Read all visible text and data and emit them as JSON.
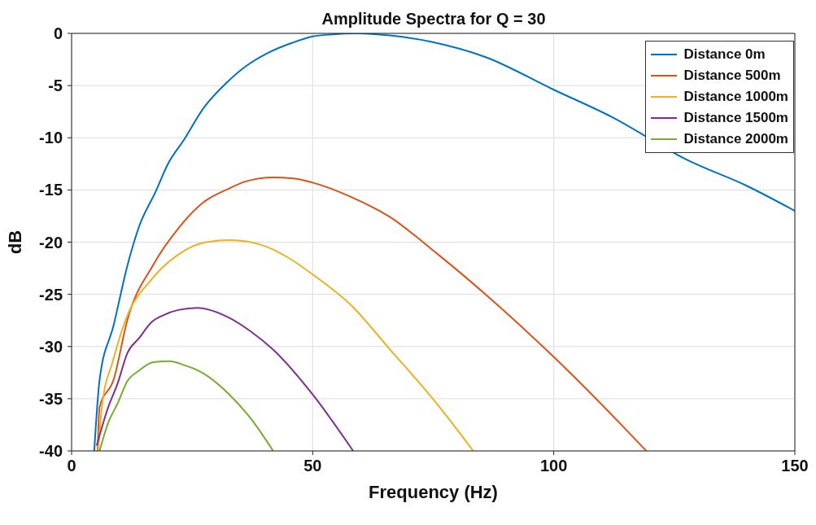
{
  "chart_data": {
    "type": "line",
    "title": "Amplitude Spectra for Q = 30",
    "xlabel": "Frequency (Hz)",
    "ylabel": "dB",
    "xlim": [
      0,
      150
    ],
    "xticks": [
      0,
      50,
      100,
      150
    ],
    "ylim": [
      -40,
      0
    ],
    "yticks": [
      -40,
      -35,
      -30,
      -25,
      -20,
      -15,
      -10,
      -5,
      0
    ],
    "grid": true,
    "legend": "top right",
    "marker": "none",
    "line_style": "solid",
    "series": [
      {
        "name": "Distance 0m",
        "color": "#0072bd",
        "x": [
          4.7,
          5.8,
          8.7,
          11.6,
          14,
          17.4,
          20,
          23.3,
          27.3,
          32,
          36,
          40.6,
          45.8,
          50,
          54,
          59.3,
          66,
          74.5,
          86,
          100,
          112,
          128,
          140,
          150
        ],
        "values": [
          -40,
          -33.2,
          -28,
          -22.2,
          -18.5,
          -15.2,
          -12.5,
          -10.2,
          -7.2,
          -4.8,
          -3.2,
          -1.9,
          -0.9,
          -0.3,
          -0.1,
          0,
          -0.2,
          -0.8,
          -2.3,
          -5.4,
          -8.0,
          -12.2,
          -14.6,
          -17
        ]
      },
      {
        "name": "Distance 500m",
        "color": "#d95319",
        "x": [
          5.4,
          5.8,
          8.7,
          11.6,
          16.9,
          22.1,
          27.3,
          32.5,
          36,
          41.8,
          46,
          50,
          58.1,
          65.7,
          75.8,
          86.1,
          100,
          109.4,
          119.2
        ],
        "values": [
          -40,
          -35.8,
          -33.2,
          -27.4,
          -22.2,
          -18.7,
          -16.2,
          -14.9,
          -14.2,
          -13.8,
          -13.9,
          -14.3,
          -15.7,
          -17.5,
          -21.1,
          -25.1,
          -31,
          -35.3,
          -40
        ]
      },
      {
        "name": "Distance 1000m",
        "color": "#edb120",
        "x": [
          5.5,
          6.4,
          8.5,
          11,
          16.9,
          22.1,
          27.9,
          32.9,
          39.6,
          45,
          50,
          58.1,
          65.7,
          75.8,
          83.3
        ],
        "values": [
          -40,
          -35.3,
          -31.5,
          -27.7,
          -23.4,
          -21.2,
          -20,
          -19.8,
          -20.3,
          -21.5,
          -23.1,
          -26.1,
          -30.1,
          -35.5,
          -40
        ]
      },
      {
        "name": "Distance 1500m",
        "color": "#7e2f8e",
        "x": [
          5.2,
          7.6,
          9.5,
          11.6,
          14,
          16.5,
          19,
          22.1,
          26.1,
          32.5,
          37,
          41.8,
          50,
          58.4
        ],
        "values": [
          -39.5,
          -35.8,
          -33.6,
          -30.6,
          -29.2,
          -27.7,
          -27,
          -26.5,
          -26.3,
          -27.2,
          -28.5,
          -30.3,
          -34.6,
          -40
        ]
      },
      {
        "name": "Distance 2000m",
        "color": "#77ac30",
        "x": [
          5.8,
          7.6,
          9.5,
          11.6,
          14,
          16.9,
          20.3,
          23.5,
          26.7,
          32.5,
          37,
          41.8
        ],
        "values": [
          -40,
          -37.3,
          -35.5,
          -33.3,
          -32.3,
          -31.5,
          -31.4,
          -31.8,
          -32.4,
          -34.5,
          -36.8,
          -40
        ]
      }
    ]
  }
}
